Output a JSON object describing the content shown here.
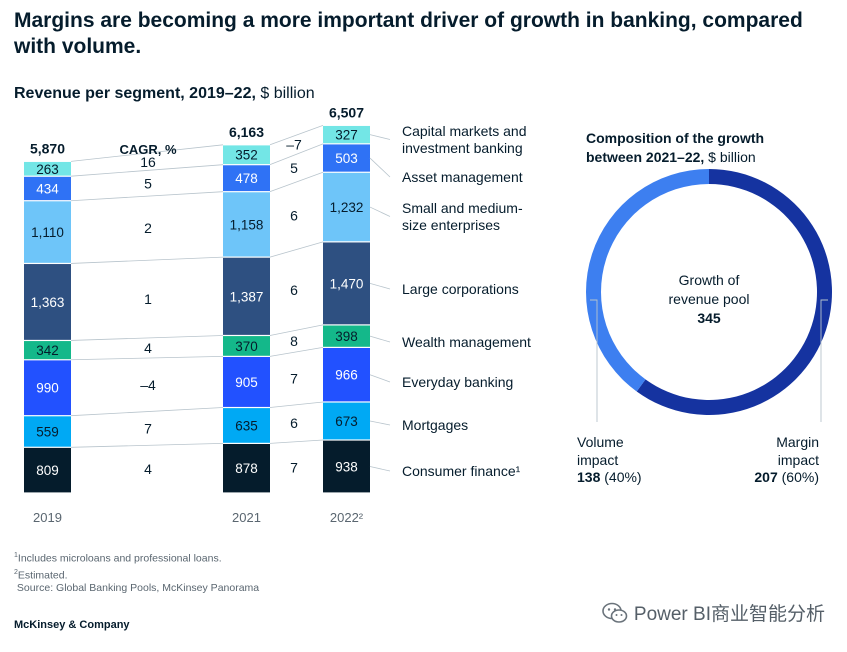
{
  "header": {
    "title": "Margins are becoming a more important driver of growth in banking, compared with volume.",
    "subtitle_bold": "Revenue per segment, 2019–22,",
    "subtitle_unit": " $ billion"
  },
  "chart_data": [
    {
      "type": "bar",
      "stacked": true,
      "categories": [
        "2019",
        "2021",
        "2022²"
      ],
      "totals": [
        "5,870",
        "6,163",
        "6,507"
      ],
      "cagr_label": "CAGR, %",
      "series": [
        {
          "name": "Consumer finance¹",
          "color": "#051c2c",
          "values": [
            809,
            878,
            938
          ],
          "labels": [
            "809",
            "878",
            "938"
          ],
          "cagr_19_21": "4",
          "cagr_21_22": "7"
        },
        {
          "name": "Mortgages",
          "color": "#00a9f4",
          "values": [
            559,
            635,
            673
          ],
          "labels": [
            "559",
            "635",
            "673"
          ],
          "cagr_19_21": "7",
          "cagr_21_22": "6"
        },
        {
          "name": "Everyday banking",
          "color": "#2251ff",
          "values": [
            990,
            905,
            966
          ],
          "labels": [
            "990",
            "905",
            "966"
          ],
          "cagr_19_21": "–4",
          "cagr_21_22": "7"
        },
        {
          "name": "Wealth management",
          "color": "#14b88a",
          "values": [
            342,
            370,
            398
          ],
          "labels": [
            "342",
            "370",
            "398"
          ],
          "cagr_19_21": "4",
          "cagr_21_22": "8"
        },
        {
          "name": "Large corporations",
          "color": "#2e5081",
          "values": [
            1363,
            1387,
            1470
          ],
          "labels": [
            "1,363",
            "1,387",
            "1,470"
          ],
          "cagr_19_21": "1",
          "cagr_21_22": "6"
        },
        {
          "name": "Small and medium-size enterprises",
          "color": "#6ec5f9",
          "values": [
            1110,
            1158,
            1232
          ],
          "labels": [
            "1,110",
            "1,158",
            "1,232"
          ],
          "cagr_19_21": "2",
          "cagr_21_22": "6"
        },
        {
          "name": "Asset management",
          "color": "#2f72f5",
          "values": [
            434,
            478,
            503
          ],
          "labels": [
            "434",
            "478",
            "503"
          ],
          "cagr_19_21": "5",
          "cagr_21_22": "5"
        },
        {
          "name": "Capital markets and investment banking",
          "color": "#73e6e6",
          "values": [
            263,
            352,
            327
          ],
          "labels": [
            "263",
            "352",
            "327"
          ],
          "cagr_19_21": "16",
          "cagr_21_22": "–7"
        }
      ]
    },
    {
      "type": "pie",
      "donut": true,
      "title_bold": "Composition of the growth between 2021–22,",
      "title_unit": " $ billion",
      "center_label": "Growth of revenue pool",
      "center_value": "345",
      "slices": [
        {
          "name": "Volume impact",
          "value": 138,
          "value_label": "138",
          "pct_label": "(40%)",
          "color": "#3d7ff0"
        },
        {
          "name": "Margin impact",
          "value": 207,
          "value_label": "207",
          "pct_label": "(60%)",
          "color": "#1533a0"
        }
      ]
    }
  ],
  "notes": {
    "note1_mark": "1",
    "note1": "Includes microloans and professional loans.",
    "note2_mark": "2",
    "note2": "Estimated.",
    "source": "Source: Global Banking Pools, McKinsey Panorama"
  },
  "footer": {
    "brand": "McKinsey & Company",
    "watermark": "Power BI商业智能分析"
  },
  "colors": {
    "text": "#051c2c",
    "connector": "#b8c4cc"
  }
}
